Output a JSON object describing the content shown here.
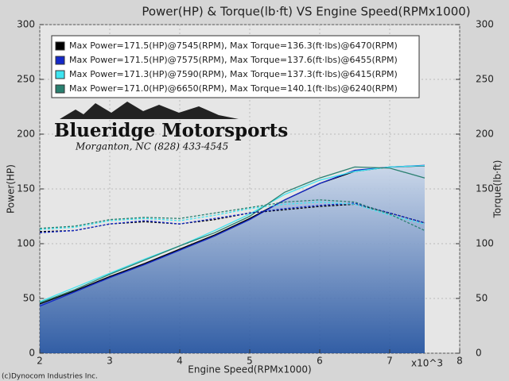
{
  "chart_data": {
    "type": "line",
    "title": "Power(HP) & Torque(lb·ft) VS Engine Speed(RPMx1000)",
    "x_label": "Engine Speed(RPMx1000)",
    "y_label": "Power(HP)",
    "y2_label": "Torque(lb·ft)",
    "x_multiplier": "x10^3",
    "copyright": "(c)Dynocom Industries Inc.",
    "logo": {
      "name": "Blueridge Motorsports",
      "contact": "Morganton, NC (828) 433-4545"
    },
    "x": [
      2.0,
      2.5,
      3.0,
      3.5,
      4.0,
      4.5,
      5.0,
      5.5,
      6.0,
      6.5,
      7.0,
      7.5
    ],
    "xlim": [
      2,
      8
    ],
    "xticks": [
      2,
      3,
      4,
      5,
      6,
      7,
      8
    ],
    "ylim": [
      0,
      300
    ],
    "yticks": [
      0,
      50,
      100,
      150,
      200,
      250,
      300
    ],
    "y2lim": [
      0,
      300
    ],
    "y2ticks": [
      0,
      50,
      100,
      150,
      200,
      250,
      300
    ],
    "grid": true,
    "series": [
      {
        "name": "Max Power=171.5(HP)@7545(RPM), Max Torque=136.3(ft·lbs)@6470(RPM)",
        "color": "#000000",
        "values": [
          45,
          57,
          70,
          82,
          95,
          108,
          123,
          140,
          155,
          166,
          170,
          171
        ]
      },
      {
        "name": "Max Power=171.5(HP)@7575(RPM), Max Torque=137.6(ft·lbs)@6455(RPM)",
        "color": "#1428c8",
        "values": [
          43,
          56,
          69,
          81,
          94,
          107,
          122,
          140,
          155,
          167,
          170,
          171.5
        ]
      },
      {
        "name": "Max Power=171.3(HP)@7590(RPM), Max Torque=137.3(ft·lbs)@6415(RPM)",
        "color": "#3ee4f0",
        "values": [
          47,
          60,
          73,
          86,
          98,
          112,
          127,
          145,
          158,
          166,
          170,
          171.3
        ]
      },
      {
        "name": "Max Power=171.0(HP)@6650(RPM), Max Torque=140.1(ft·lbs)@6240(RPM)",
        "color": "#2a8070",
        "values": [
          46,
          58,
          72,
          85,
          98,
          110,
          125,
          147,
          160,
          170,
          169,
          160
        ]
      },
      {
        "color": "#000000",
        "axis": "y2",
        "dashed": true,
        "values": [
          111,
          112,
          118,
          120,
          118,
          122,
          128,
          131,
          134,
          136,
          128,
          119
        ]
      },
      {
        "color": "#1428c8",
        "axis": "y2",
        "dashed": true,
        "values": [
          110,
          112,
          118,
          121,
          118,
          123,
          128,
          132,
          135,
          137,
          128,
          119
        ]
      },
      {
        "color": "#3ee4f0",
        "axis": "y2",
        "dashed": true,
        "values": [
          113,
          115,
          121,
          123,
          121,
          126,
          132,
          136,
          138,
          136,
          126,
          118
        ]
      },
      {
        "color": "#2a8070",
        "axis": "y2",
        "dashed": true,
        "values": [
          114,
          116,
          122,
          124,
          123,
          128,
          133,
          138,
          140,
          138,
          127,
          112
        ]
      }
    ]
  }
}
